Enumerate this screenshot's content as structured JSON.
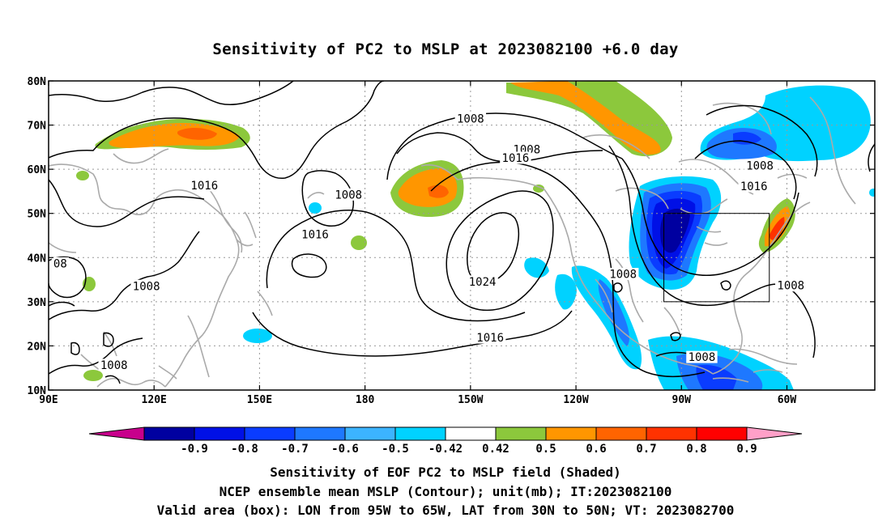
{
  "title": "Sensitivity of PC2 to MSLP at 2023082100 +6.0 day",
  "captions": {
    "line1": "Sensitivity of EOF PC2 to MSLP field (Shaded)",
    "line2": "NCEP ensemble mean MSLP (Contour); unit(mb); IT:2023082100",
    "line3": "Valid area (box): LON from 95W to 65W, LAT from 30N to 50N; VT: 2023082700"
  },
  "map": {
    "lon_range": [
      90,
      325
    ],
    "lat_range": [
      10,
      80
    ],
    "x_ticks": [
      {
        "lon": 90,
        "label": "90E"
      },
      {
        "lon": 120,
        "label": "120E"
      },
      {
        "lon": 150,
        "label": "150E"
      },
      {
        "lon": 180,
        "label": "180"
      },
      {
        "lon": 210,
        "label": "150W"
      },
      {
        "lon": 240,
        "label": "120W"
      },
      {
        "lon": 270,
        "label": "90W"
      },
      {
        "lon": 300,
        "label": "60W"
      }
    ],
    "y_ticks": [
      {
        "lat": 10,
        "label": "10N"
      },
      {
        "lat": 20,
        "label": "20N"
      },
      {
        "lat": 30,
        "label": "30N"
      },
      {
        "lat": 40,
        "label": "40N"
      },
      {
        "lat": 50,
        "label": "50N"
      },
      {
        "lat": 60,
        "label": "60N"
      },
      {
        "lat": 70,
        "label": "70N"
      },
      {
        "lat": 80,
        "label": "80N"
      }
    ],
    "valid_box": {
      "lon_min": 265,
      "lon_max": 295,
      "lat_min": 30,
      "lat_max": 50
    },
    "contour_labels": [
      {
        "text": "1008",
        "lon": 210,
        "lat": 71.4
      },
      {
        "text": "1008",
        "lon": 226,
        "lat": 64.4
      },
      {
        "text": "1016",
        "lon": 222.8,
        "lat": 62.5
      },
      {
        "text": "1008",
        "lon": 292.3,
        "lat": 60.8
      },
      {
        "text": "1016",
        "lon": 290.6,
        "lat": 56.1
      },
      {
        "text": "1016",
        "lon": 134.3,
        "lat": 56.3
      },
      {
        "text": "1008",
        "lon": 175.3,
        "lat": 54.2
      },
      {
        "text": "1016",
        "lon": 165.8,
        "lat": 45.2
      },
      {
        "text": "08",
        "lon": 93.3,
        "lat": 38.6
      },
      {
        "text": "1008",
        "lon": 117.8,
        "lat": 33.5
      },
      {
        "text": "1024",
        "lon": 213.4,
        "lat": 34.5
      },
      {
        "text": "1008",
        "lon": 253.4,
        "lat": 36.2
      },
      {
        "text": "1008",
        "lon": 301.1,
        "lat": 33.6
      },
      {
        "text": "1016",
        "lon": 215.6,
        "lat": 21.8
      },
      {
        "text": "1008",
        "lon": 108.6,
        "lat": 15.6
      },
      {
        "text": "1008",
        "lon": 275.8,
        "lat": 17.4
      }
    ]
  },
  "colorbar": {
    "levels": [
      "-0.9",
      "-0.8",
      "-0.7",
      "-0.6",
      "-0.5",
      "-0.42",
      "0.42",
      "0.5",
      "0.6",
      "0.7",
      "0.8",
      "0.9"
    ],
    "colors": [
      "#c8008c",
      "#0000a0",
      "#0010e6",
      "#0a3cff",
      "#1e78ff",
      "#3cb4ff",
      "#00d2ff",
      "#ffffff",
      "#8cc83c",
      "#ff9600",
      "#ff6400",
      "#ff3200",
      "#ff0000",
      "#ffa0c8"
    ]
  }
}
